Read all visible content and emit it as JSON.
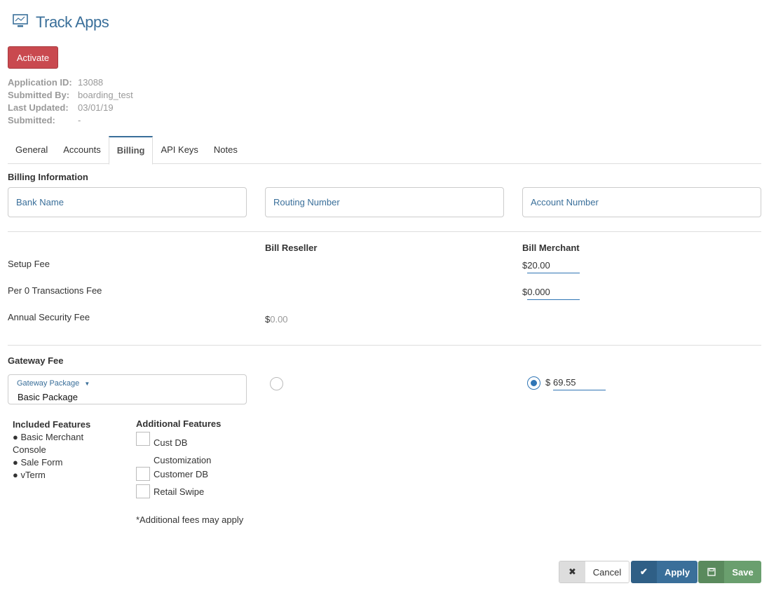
{
  "header": {
    "title": "Track Apps",
    "icon": "monitor-chart-icon"
  },
  "activate_label": "Activate",
  "meta": [
    {
      "label": "Application ID:",
      "value": "13088"
    },
    {
      "label": "Submitted By:",
      "value": "boarding_test"
    },
    {
      "label": "Last Updated:",
      "value": "03/01/19"
    },
    {
      "label": "Submitted:",
      "value": "-"
    }
  ],
  "tabs": [
    {
      "label": "General"
    },
    {
      "label": "Accounts"
    },
    {
      "label": "Billing",
      "active": true
    },
    {
      "label": "API Keys"
    },
    {
      "label": "Notes"
    }
  ],
  "billing": {
    "heading": "Billing Information",
    "bank_name": "Bank Name",
    "routing_number": "Routing Number",
    "account_number": "Account Number"
  },
  "fees": {
    "col_reseller": "Bill Reseller",
    "col_merchant": "Bill Merchant",
    "setup_fee": {
      "label": "Setup Fee",
      "merchant": "$20.00"
    },
    "per_tx_fee": {
      "label": "Per 0 Transactions Fee",
      "merchant": "$0.000"
    },
    "annual_fee": {
      "label": "Annual Security Fee",
      "currency": "$",
      "reseller": "0.00"
    }
  },
  "gateway": {
    "heading": "Gateway Fee",
    "package_label": "Gateway Package",
    "package_value": "Basic Package",
    "currency": "$",
    "merchant_value": "69.55",
    "selected": "merchant"
  },
  "included": {
    "heading": "Included Features",
    "items": [
      "● Basic Merchant Console",
      "● Sale Form",
      "● vTerm"
    ]
  },
  "additional": {
    "heading": "Additional Features",
    "items": [
      {
        "label": "Cust DB Customization",
        "checked": false
      },
      {
        "label": "Customer DB",
        "checked": false
      },
      {
        "label": "Retail Swipe",
        "checked": false
      }
    ],
    "note": "*Additional fees may apply"
  },
  "footer": {
    "cancel": "Cancel",
    "apply": "Apply",
    "save": "Save"
  },
  "colors": {
    "accent": "#3a6f9a",
    "danger": "#c9494f",
    "apply": "#3a6f9a",
    "save": "#6a9f6e"
  }
}
